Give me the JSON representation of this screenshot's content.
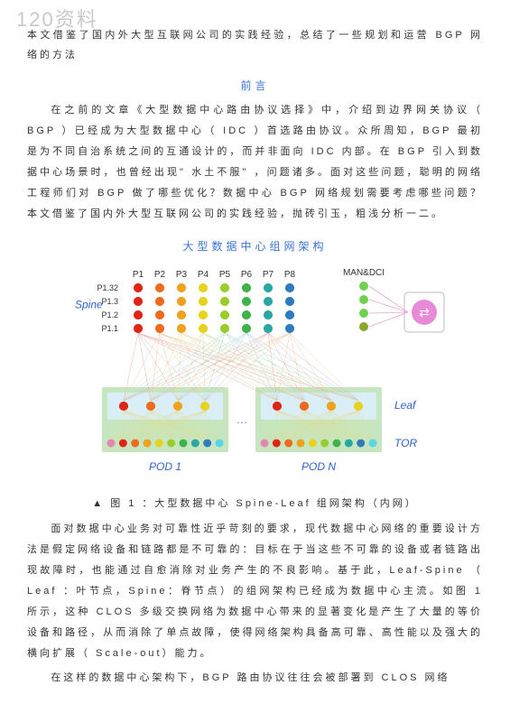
{
  "watermark": "120资料",
  "intro": "本文借鉴了国内外大型互联网公司的实践经验，总结了一些规划和运营 BGP 网络的方法",
  "preface_title": "前言",
  "preface_body": "在之前的文章《大型数据中心路由协议选择》中，介绍到边界网关协议（ BGP ）已经成为大型数据中心（ IDC ）首选路由协议。众所周知，BGP 最初是为不同自治系统之间的互通设计的，而并非面向 IDC 内部。在 BGP 引入到数据中心场景时，也曾经出现\" 水土不服\" ，问题诸多。面对这些问题，聪明的网络工程师们对 BGP 做了哪些优化？数据中心 BGP 网络规划需要考虑哪些问题？本文借鉴了国内外大型互联网公司的实践经验，抛砖引玉，粗浅分析一二。",
  "arch_title": "大型数据中心组网架构",
  "diagram": {
    "spine_label": "Spine",
    "leaf_label": "Leaf",
    "tor_label": "TOR",
    "pod1_label": "POD 1",
    "podn_label": "POD N",
    "man_label": "MAN&DCI",
    "p_cols": [
      "P1",
      "P2",
      "P3",
      "P4",
      "P5",
      "P6",
      "P7",
      "P8"
    ],
    "spine_rows": [
      "P1.32",
      "P1.3",
      "P1.2",
      "P1.1"
    ],
    "spine_colors": [
      "#e02514",
      "#ef6a1f",
      "#f0a11e",
      "#e7d21f",
      "#9acc2b",
      "#3fb24a",
      "#2aa7a0",
      "#2e7cc0"
    ],
    "leaf_colors": [
      "#e02514",
      "#ef6a1f",
      "#f0a11e",
      "#e7d21f"
    ],
    "tor_colors": [
      "#e784b6",
      "#e02514",
      "#ef6a1f",
      "#f0a11e",
      "#e7d21f",
      "#9acc2b",
      "#3fb24a",
      "#2aa7a0",
      "#2e7cc0",
      "#56d6e6"
    ],
    "man_colors": [
      "#6fd24f",
      "#6fd24f",
      "#6fd24f",
      "#8aa62b"
    ],
    "router_color": "#e98ad6",
    "pod_bg": "#c6e6c0",
    "leaf_box_bg": "#d9eef6",
    "dots": "…",
    "label_color_spine": "#2e63c9",
    "label_color_leaf": "#2e63c9",
    "label_color_tor": "#2e63c9",
    "label_color_pod": "#2e63c9",
    "label_color_man": "#333333",
    "line_colors": [
      "#e7a9a3",
      "#e8c79d",
      "#e9dba0",
      "#c9deaa",
      "#a9d6c7",
      "#a9cde3"
    ]
  },
  "caption": "▲ 图 1 ：大型数据中心 Spine-Leaf 组网架构（内网）",
  "body1": "面对数据中心业务对可靠性近乎苛刻的要求，现代数据中心网络的重要设计方法是假定网络设备和链路都是不可靠的：目标在于当这些不可靠的设备或者链路出现故障时，也能通过自愈消除对业务产生的不良影响。基于此，Leaf-Spine （ Leaf ：叶节点，Spine：脊节点）的组网架构已经成为数据中心主流。如图 1 所示，这种 CLOS 多级交换网络为数据中心带来的显著变化是产生了大量的等价设备和路径，从而消除了单点故障，使得网络架构具备高可靠、高性能以及强大的横向扩展（ Scale-out）能力。",
  "body2": "在这样的数据中心架构下，BGP 路由协议往往会被部署到 CLOS 网络"
}
